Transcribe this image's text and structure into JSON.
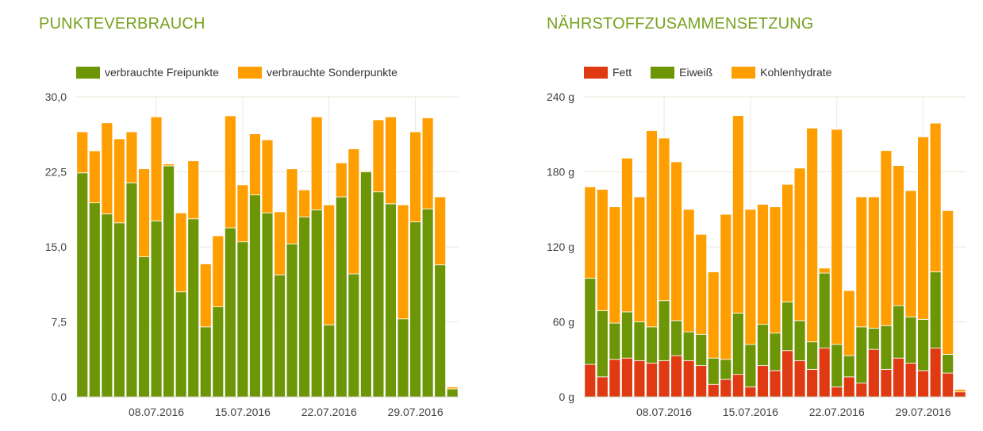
{
  "chart_data": [
    {
      "type": "bar",
      "stacked": true,
      "title": "PUNKTEVERBRAUCH",
      "ylim": [
        0,
        30
      ],
      "y_ticks": [
        "0,0",
        "7,5",
        "15,0",
        "22,5",
        "30,0"
      ],
      "x_ticks": [
        {
          "index": 6.5,
          "label": "08.07.2016"
        },
        {
          "index": 13.5,
          "label": "15.07.2016"
        },
        {
          "index": 20.5,
          "label": "22.07.2016"
        },
        {
          "index": 27.5,
          "label": "29.07.2016"
        }
      ],
      "grid": true,
      "legend": "top-left",
      "series": [
        {
          "name": "verbrauchte Freipunkte",
          "color": "#6d9607",
          "values": [
            22.4,
            19.4,
            18.3,
            17.4,
            21.4,
            14.0,
            17.6,
            23.1,
            10.5,
            17.8,
            7.0,
            9.0,
            16.9,
            15.5,
            20.2,
            18.4,
            12.2,
            15.3,
            18.0,
            18.7,
            7.2,
            20.0,
            12.3,
            22.5,
            20.5,
            19.3,
            7.8,
            17.5,
            18.8,
            13.2,
            0.8
          ]
        },
        {
          "name": "verbrauchte Sonderpunkte",
          "color": "#ff9e00",
          "values": [
            4.1,
            5.2,
            9.1,
            8.4,
            5.1,
            8.8,
            10.4,
            0.2,
            7.9,
            5.8,
            6.3,
            7.1,
            11.2,
            5.7,
            6.1,
            7.3,
            6.3,
            7.5,
            2.7,
            9.3,
            12.0,
            3.4,
            12.5,
            0.1,
            7.2,
            8.7,
            11.4,
            9.0,
            9.1,
            6.8,
            0.2
          ]
        }
      ]
    },
    {
      "type": "bar",
      "stacked": true,
      "title": "NÄHRSTOFFZUSAMMENSETZUNG",
      "ylim": [
        0,
        240
      ],
      "y_ticks": [
        "0 g",
        "60 g",
        "120 g",
        "180 g",
        "240 g"
      ],
      "x_ticks": [
        {
          "index": 6.5,
          "label": "08.07.2016"
        },
        {
          "index": 13.5,
          "label": "15.07.2016"
        },
        {
          "index": 20.5,
          "label": "22.07.2016"
        },
        {
          "index": 27.5,
          "label": "29.07.2016"
        }
      ],
      "grid": true,
      "legend": "top-left",
      "series": [
        {
          "name": "Fett",
          "color": "#e03a12",
          "values": [
            26,
            16,
            30,
            31,
            29,
            27,
            29,
            33,
            29,
            25,
            10,
            14,
            18,
            8,
            25,
            21,
            37,
            29,
            22,
            39,
            8,
            16,
            11,
            38,
            22,
            31,
            27,
            21,
            39,
            19,
            4
          ]
        },
        {
          "name": "Eiweiß",
          "color": "#6d9607",
          "values": [
            69,
            53,
            29,
            37,
            31,
            29,
            48,
            28,
            23,
            25,
            21,
            16,
            49,
            34,
            33,
            30,
            39,
            32,
            22,
            60,
            34,
            17,
            45,
            17,
            35,
            42,
            37,
            41,
            61,
            15,
            0
          ]
        },
        {
          "name": "Kohlenhydrate",
          "color": "#ff9e00",
          "values": [
            73,
            97,
            93,
            123,
            100,
            157,
            130,
            127,
            98,
            80,
            69,
            116,
            158,
            108,
            96,
            101,
            94,
            122,
            171,
            4,
            172,
            52,
            104,
            105,
            140,
            112,
            101,
            146,
            119,
            115,
            2
          ]
        }
      ]
    }
  ]
}
